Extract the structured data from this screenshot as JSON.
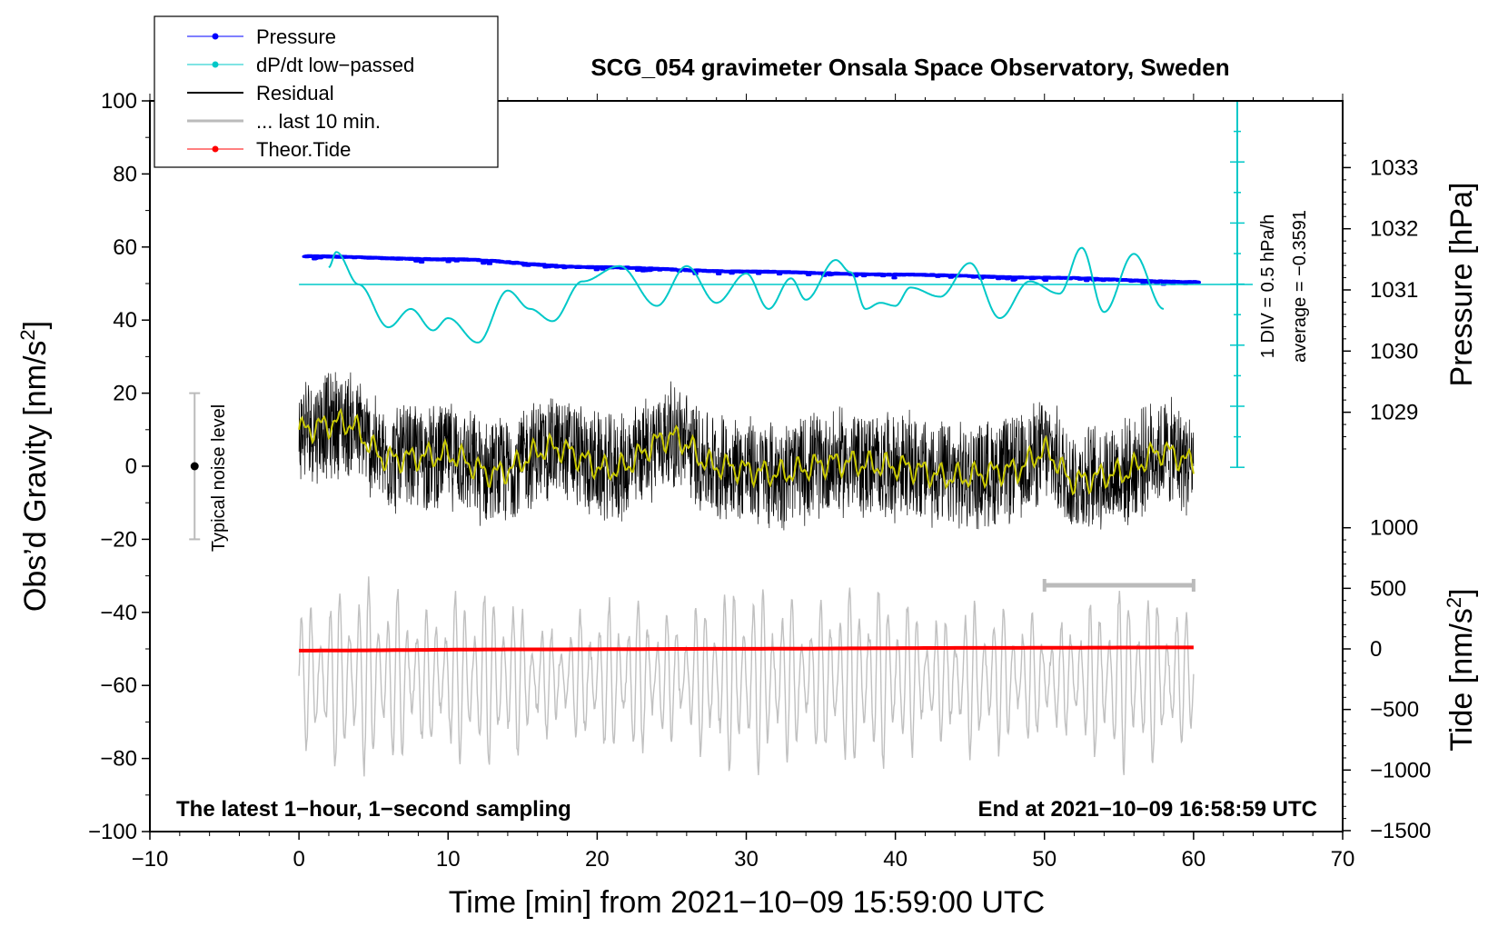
{
  "chart_data": {
    "type": "line",
    "title": "SCG_054 gravimeter Onsala Space Observatory, Sweden",
    "xlabel": "Time [min] from 2021−10−09 15:59:00 UTC",
    "ylabel_main": "Obs’d Gravity [nm/s",
    "ylabel_main_sup": "2",
    "ylabel_main_close": "]",
    "ylabel_pressure": "Pressure [hPa]",
    "ylabel_tide": "Tide [nm/s",
    "ylabel_tide_sup": "2",
    "ylabel_tide_close": "]",
    "xlim": [
      -10,
      70
    ],
    "ylim": [
      -100,
      100
    ],
    "xticks": [
      -10,
      0,
      10,
      20,
      30,
      40,
      50,
      60,
      70
    ],
    "xtick_labels": [
      "−10",
      "0",
      "10",
      "20",
      "30",
      "40",
      "50",
      "60",
      "70"
    ],
    "yticks": [
      100,
      80,
      60,
      40,
      20,
      0,
      -20,
      -40,
      -60,
      -80,
      -100
    ],
    "ytick_labels": [
      "100",
      "80",
      "60",
      "40",
      "20",
      "0",
      "−20",
      "−40",
      "−60",
      "−80",
      "−100"
    ],
    "pressure_axis": {
      "ticks": [
        1033,
        1032,
        1031,
        1030,
        1029
      ],
      "tick_labels": [
        "1033",
        "1032",
        "1031",
        "1030",
        "1029"
      ]
    },
    "tide_axis": {
      "ticks": [
        1000,
        500,
        0,
        -500,
        -1000,
        -1500
      ],
      "tick_labels": [
        "1000",
        "500",
        "0",
        "−500",
        "−1000",
        "−1500"
      ]
    },
    "legend": [
      {
        "label": "Pressure",
        "color": "#0000ff",
        "marker": true
      },
      {
        "label": "dP/dt low−passed",
        "color": "#00c8c8",
        "marker": true
      },
      {
        "label": "Residual",
        "color": "#000000",
        "marker": false
      },
      {
        "label": "... last 10 min.",
        "color": "#bbbbbb",
        "marker": false
      },
      {
        "label": "Theor.Tide",
        "color": "#ff0000",
        "marker": true
      }
    ],
    "series": [
      {
        "name": "Pressure",
        "unit": "hPa",
        "x": [
          0,
          10,
          20,
          30,
          40,
          50,
          60
        ],
        "y": [
          1031.55,
          1031.5,
          1031.37,
          1031.3,
          1031.25,
          1031.2,
          1031.13
        ]
      },
      {
        "name": "dP/dt low-passed",
        "unit": "hPa/h",
        "x": [
          2,
          2.5,
          4,
          6,
          7.5,
          9,
          10,
          12,
          14,
          15.5,
          17,
          19,
          21.5,
          24,
          26,
          28,
          30,
          31.5,
          33,
          34,
          36,
          37,
          38,
          39,
          40,
          41,
          43,
          45,
          47,
          49,
          51,
          52.5,
          54,
          56,
          58
        ],
        "y": [
          0.28,
          0.53,
          0.0,
          -0.7,
          -0.4,
          -0.75,
          -0.55,
          -0.95,
          -0.1,
          -0.4,
          -0.6,
          0.05,
          0.3,
          -0.35,
          0.3,
          -0.3,
          0.18,
          -0.4,
          0.1,
          -0.25,
          0.4,
          0.2,
          -0.4,
          -0.3,
          -0.35,
          -0.05,
          -0.2,
          0.35,
          -0.55,
          0.05,
          -0.15,
          0.6,
          -0.45,
          0.5,
          -0.4
        ]
      },
      {
        "name": "Residual low-passed",
        "unit": "nm/s2",
        "x": [
          0,
          3,
          6,
          10,
          13,
          17,
          21,
          25,
          28,
          32,
          36,
          40,
          44,
          48,
          50,
          52,
          55,
          58,
          60
        ],
        "y": [
          10,
          12,
          2,
          3,
          -2,
          5,
          -1,
          8,
          0,
          -2,
          1,
          0,
          -3,
          -1,
          4,
          -4,
          -2,
          4,
          1
        ]
      },
      {
        "name": "Theor.Tide",
        "unit": "nm/s2",
        "x": [
          0,
          15,
          30,
          45,
          60
        ],
        "y": [
          -14,
          -4,
          1,
          8,
          12
        ]
      }
    ],
    "annotations": {
      "noise_label": "Typical noise level",
      "noise_range": [
        -20,
        20
      ],
      "div_label": "1 DIV = 0.5 hPa/h",
      "avg_label": "average = −0.3591",
      "bottom_left": "The latest 1−hour, 1−second sampling",
      "bottom_right": "End at 2021−10−09 16:58:59 UTC",
      "last10_range_min": [
        50,
        60
      ]
    }
  }
}
